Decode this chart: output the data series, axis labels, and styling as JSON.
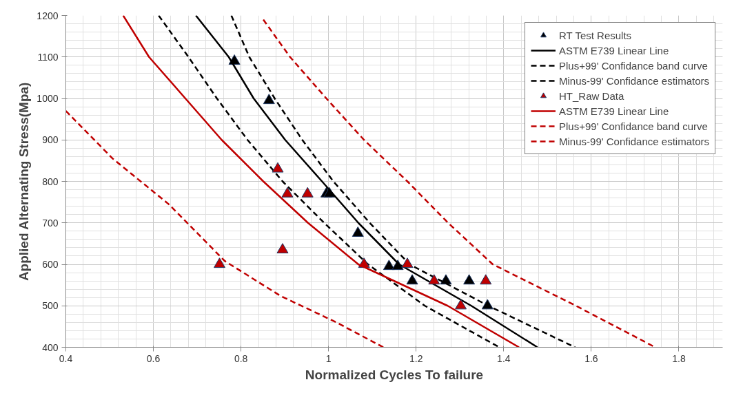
{
  "chart_data": {
    "type": "line",
    "xlabel": "Normalized Cycles To failure",
    "ylabel": "Applied Alternating Stress(Mpa)",
    "xlim": [
      0.4,
      1.9
    ],
    "ylim": [
      400,
      1200
    ],
    "xticks": [
      0.4,
      0.6,
      0.8,
      1,
      1.2,
      1.4,
      1.6,
      1.8
    ],
    "yticks": [
      400,
      500,
      600,
      700,
      800,
      900,
      1000,
      1100,
      1200
    ],
    "grid": true,
    "legend": "top right",
    "series": [
      {
        "name": "RT Test Results",
        "type": "scatter",
        "marker": "triangle",
        "color": "#000000",
        "x": [
          0.785,
          0.864,
          0.995,
          1.002,
          1.067,
          1.138,
          1.158,
          1.191,
          1.268,
          1.321,
          1.363
        ],
        "values": [
          1090,
          995,
          770,
          770,
          675,
          595,
          595,
          560,
          560,
          560,
          500
        ]
      },
      {
        "name": "ASTM E739 Linear Line",
        "line_style": "solid",
        "color": "#000000",
        "x": [
          0.697,
          0.772,
          0.829,
          0.901,
          0.985,
          1.068,
          1.161,
          1.326,
          1.477
        ],
        "values": [
          1200,
          1100,
          1000,
          900,
          800,
          700,
          600,
          500,
          400
        ]
      },
      {
        "name": "Plus+99' Confidance band curve",
        "line_style": "dashed",
        "color": "#000000",
        "x": [
          0.778,
          0.819,
          0.877,
          0.94,
          1.011,
          1.094,
          1.185,
          1.365,
          1.563
        ],
        "values": [
          1200,
          1100,
          1000,
          900,
          800,
          700,
          600,
          500,
          400
        ]
      },
      {
        "name": "Minus-99' Confidance estimators",
        "line_style": "dashed",
        "color": "#000000",
        "x": [
          0.612,
          0.68,
          0.745,
          0.815,
          0.895,
          0.99,
          1.09,
          1.22,
          1.39
        ],
        "values": [
          1200,
          1100,
          1000,
          900,
          800,
          700,
          600,
          500,
          400
        ]
      },
      {
        "name": "HT_Raw Data",
        "type": "scatter",
        "marker": "triangle",
        "color": "#c00000",
        "x": [
          0.751,
          0.895,
          0.884,
          0.906,
          0.952,
          1.081,
          1.18,
          1.241,
          1.302,
          1.359
        ],
        "values": [
          600,
          635,
          830,
          770,
          770,
          600,
          600,
          560,
          500,
          560
        ]
      },
      {
        "name": "ASTM E739 Linear Line",
        "line_style": "solid",
        "color": "#c00000",
        "x": [
          0.531,
          0.59,
          0.673,
          0.756,
          0.851,
          0.953,
          1.068,
          1.272,
          1.435
        ],
        "values": [
          1200,
          1100,
          1000,
          900,
          800,
          700,
          600,
          500,
          400
        ]
      },
      {
        "name": "Plus+99' Confidance band curve",
        "line_style": "dashed",
        "color": "#c00000",
        "x": [
          0.851,
          0.912,
          0.995,
          1.081,
          1.18,
          1.273,
          1.375,
          1.565,
          1.746
        ],
        "values": [
          1190,
          1100,
          1000,
          900,
          800,
          700,
          600,
          500,
          400
        ]
      },
      {
        "name": "Minus-99' Confidance estimators",
        "line_style": "dashed",
        "color": "#c00000",
        "x": [
          0.4,
          0.507,
          0.635,
          0.763,
          0.89,
          1.018,
          1.125
        ],
        "values": [
          970,
          855,
          745,
          608,
          524,
          460,
          400
        ]
      }
    ]
  }
}
